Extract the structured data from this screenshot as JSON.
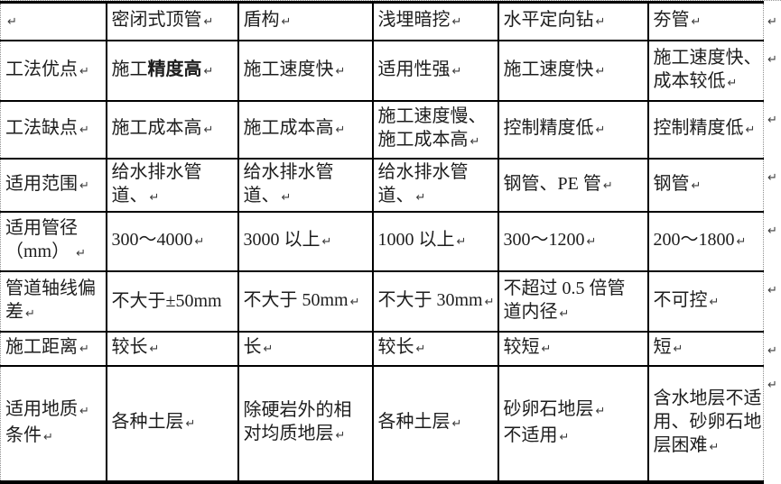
{
  "colors": {
    "border_solid": "#000000",
    "border_dotted": "#8f8f8f",
    "text": "#1d1d1d",
    "mark": "#3c3c3c",
    "background": "#ffffff"
  },
  "mark_glyph": "↵",
  "table": {
    "description_header_row_and_rows": "comparison table of trenchless construction methods",
    "columns": [
      "",
      "密闭式顶管",
      "盾构",
      "浅埋暗挖",
      "水平定向钻",
      "夯管"
    ],
    "rows": [
      {
        "name": "header",
        "end_mark": true,
        "cells": [
          {
            "lines": [
              {
                "parts": [
                  {
                    "text": "",
                    "bold": false
                  }
                ],
                "mark": true
              }
            ]
          },
          {
            "lines": [
              {
                "parts": [
                  {
                    "text": "密闭式顶管",
                    "bold": false
                  }
                ],
                "mark": true
              }
            ]
          },
          {
            "lines": [
              {
                "parts": [
                  {
                    "text": "盾构",
                    "bold": false
                  }
                ],
                "mark": true
              }
            ]
          },
          {
            "lines": [
              {
                "parts": [
                  {
                    "text": "浅埋暗挖",
                    "bold": false
                  }
                ],
                "mark": true
              }
            ]
          },
          {
            "lines": [
              {
                "parts": [
                  {
                    "text": "水平定向钻",
                    "bold": false
                  }
                ],
                "mark": true
              }
            ]
          },
          {
            "lines": [
              {
                "parts": [
                  {
                    "text": "夯管",
                    "bold": false
                  }
                ],
                "mark": true
              }
            ]
          }
        ]
      },
      {
        "name": "advantages",
        "end_mark": true,
        "cells": [
          {
            "lines": [
              {
                "parts": [
                  {
                    "text": "工法优点",
                    "bold": false
                  }
                ],
                "mark": true
              }
            ]
          },
          {
            "lines": [
              {
                "parts": [
                  {
                    "text": "施工",
                    "bold": false
                  },
                  {
                    "text": "精度高",
                    "bold": true
                  }
                ],
                "mark": true
              }
            ]
          },
          {
            "lines": [
              {
                "parts": [
                  {
                    "text": "施工速度快",
                    "bold": false
                  }
                ],
                "mark": true
              }
            ]
          },
          {
            "lines": [
              {
                "parts": [
                  {
                    "text": "适用性强",
                    "bold": false
                  }
                ],
                "mark": true
              }
            ]
          },
          {
            "lines": [
              {
                "parts": [
                  {
                    "text": "施工速度快",
                    "bold": false
                  }
                ],
                "mark": true
              }
            ]
          },
          {
            "lines": [
              {
                "parts": [
                  {
                    "text": "施工速度快、",
                    "bold": false
                  }
                ],
                "mark": false
              },
              {
                "parts": [
                  {
                    "text": "成本较低",
                    "bold": false
                  }
                ],
                "mark": true
              }
            ]
          }
        ]
      },
      {
        "name": "disadvantages",
        "end_mark": true,
        "cells": [
          {
            "lines": [
              {
                "parts": [
                  {
                    "text": "工法缺点",
                    "bold": false
                  }
                ],
                "mark": true
              }
            ]
          },
          {
            "lines": [
              {
                "parts": [
                  {
                    "text": "施工成本高",
                    "bold": false
                  }
                ],
                "mark": true
              }
            ]
          },
          {
            "lines": [
              {
                "parts": [
                  {
                    "text": "施工成本高",
                    "bold": false
                  }
                ],
                "mark": true
              }
            ]
          },
          {
            "lines": [
              {
                "parts": [
                  {
                    "text": "施工速度慢、",
                    "bold": false
                  }
                ],
                "mark": false
              },
              {
                "parts": [
                  {
                    "text": "施工成本高",
                    "bold": false
                  }
                ],
                "mark": true
              }
            ]
          },
          {
            "lines": [
              {
                "parts": [
                  {
                    "text": "控制精度低",
                    "bold": false
                  }
                ],
                "mark": true
              }
            ]
          },
          {
            "lines": [
              {
                "parts": [
                  {
                    "text": "控制精度低",
                    "bold": false
                  }
                ],
                "mark": true
              }
            ]
          }
        ]
      },
      {
        "name": "applicable-scope",
        "end_mark": true,
        "cells": [
          {
            "lines": [
              {
                "parts": [
                  {
                    "text": "适用范围",
                    "bold": false
                  }
                ],
                "mark": true
              }
            ]
          },
          {
            "lines": [
              {
                "parts": [
                  {
                    "text": "给水排水管",
                    "bold": false
                  }
                ],
                "mark": false
              },
              {
                "parts": [
                  {
                    "text": "道、",
                    "bold": false
                  }
                ],
                "mark": true
              }
            ]
          },
          {
            "lines": [
              {
                "parts": [
                  {
                    "text": "给水排水管",
                    "bold": false
                  }
                ],
                "mark": false
              },
              {
                "parts": [
                  {
                    "text": "道、",
                    "bold": false
                  }
                ],
                "mark": true
              }
            ]
          },
          {
            "lines": [
              {
                "parts": [
                  {
                    "text": "给水排水管",
                    "bold": false
                  }
                ],
                "mark": false
              },
              {
                "parts": [
                  {
                    "text": "道、",
                    "bold": false
                  }
                ],
                "mark": true
              }
            ]
          },
          {
            "lines": [
              {
                "parts": [
                  {
                    "text": "钢管、PE 管",
                    "bold": false
                  }
                ],
                "mark": true
              }
            ]
          },
          {
            "lines": [
              {
                "parts": [
                  {
                    "text": "钢管",
                    "bold": false
                  }
                ],
                "mark": true
              }
            ]
          }
        ]
      },
      {
        "name": "applicable-diameter-mm",
        "end_mark": true,
        "cells": [
          {
            "lines": [
              {
                "parts": [
                  {
                    "text": "适用管径",
                    "bold": false
                  }
                ],
                "mark": false
              },
              {
                "parts": [
                  {
                    "text": "（mm） ",
                    "bold": false
                  }
                ],
                "mark": true
              }
            ]
          },
          {
            "lines": [
              {
                "parts": [
                  {
                    "text": "300～4000",
                    "bold": false
                  }
                ],
                "mark": true
              }
            ]
          },
          {
            "lines": [
              {
                "parts": [
                  {
                    "text": "3000 以上",
                    "bold": false
                  }
                ],
                "mark": true
              }
            ]
          },
          {
            "lines": [
              {
                "parts": [
                  {
                    "text": "1000 以上",
                    "bold": false
                  }
                ],
                "mark": true
              }
            ]
          },
          {
            "lines": [
              {
                "parts": [
                  {
                    "text": "300～1200",
                    "bold": false
                  }
                ],
                "mark": true
              }
            ]
          },
          {
            "lines": [
              {
                "parts": [
                  {
                    "text": "200～1800",
                    "bold": false
                  }
                ],
                "mark": true
              }
            ]
          }
        ]
      },
      {
        "name": "axis-deviation",
        "end_mark": true,
        "cells": [
          {
            "lines": [
              {
                "parts": [
                  {
                    "text": "管道轴线偏",
                    "bold": false
                  }
                ],
                "mark": false
              },
              {
                "parts": [
                  {
                    "text": "差",
                    "bold": false
                  }
                ],
                "mark": true
              }
            ]
          },
          {
            "lines": [
              {
                "parts": [
                  {
                    "text": "不大于±50mm",
                    "bold": false
                  }
                ],
                "mark": false
              }
            ]
          },
          {
            "lines": [
              {
                "parts": [
                  {
                    "text": "不大于 50mm",
                    "bold": false
                  }
                ],
                "mark": true
              }
            ]
          },
          {
            "lines": [
              {
                "parts": [
                  {
                    "text": "不大于 30mm",
                    "bold": false
                  }
                ],
                "mark": true
              }
            ]
          },
          {
            "lines": [
              {
                "parts": [
                  {
                    "text": "不超过 0.5 倍管",
                    "bold": false
                  }
                ],
                "mark": false
              },
              {
                "parts": [
                  {
                    "text": "道内径",
                    "bold": false
                  }
                ],
                "mark": true
              }
            ]
          },
          {
            "lines": [
              {
                "parts": [
                  {
                    "text": "不可控",
                    "bold": false
                  }
                ],
                "mark": true
              }
            ]
          }
        ]
      },
      {
        "name": "construction-distance",
        "end_mark": true,
        "cells": [
          {
            "lines": [
              {
                "parts": [
                  {
                    "text": "施工距离",
                    "bold": false
                  }
                ],
                "mark": true
              }
            ]
          },
          {
            "lines": [
              {
                "parts": [
                  {
                    "text": "较长",
                    "bold": false
                  }
                ],
                "mark": true
              }
            ]
          },
          {
            "lines": [
              {
                "parts": [
                  {
                    "text": "长",
                    "bold": false
                  }
                ],
                "mark": true
              }
            ]
          },
          {
            "lines": [
              {
                "parts": [
                  {
                    "text": "较长",
                    "bold": false
                  }
                ],
                "mark": true
              }
            ]
          },
          {
            "lines": [
              {
                "parts": [
                  {
                    "text": "较短",
                    "bold": false
                  }
                ],
                "mark": true
              }
            ]
          },
          {
            "lines": [
              {
                "parts": [
                  {
                    "text": "短",
                    "bold": false
                  }
                ],
                "mark": true
              }
            ]
          }
        ]
      },
      {
        "name": "geological-conditions",
        "end_mark": true,
        "cells": [
          {
            "lines": [
              {
                "parts": [
                  {
                    "text": "适用地质",
                    "bold": false
                  }
                ],
                "mark": true
              },
              {
                "parts": [
                  {
                    "text": "条件",
                    "bold": false
                  }
                ],
                "mark": true
              }
            ]
          },
          {
            "lines": [
              {
                "parts": [
                  {
                    "text": "各种土层",
                    "bold": false
                  }
                ],
                "mark": true
              }
            ]
          },
          {
            "lines": [
              {
                "parts": [
                  {
                    "text": "除硬岩外的相",
                    "bold": false
                  }
                ],
                "mark": false
              },
              {
                "parts": [
                  {
                    "text": "对均质地层",
                    "bold": false
                  }
                ],
                "mark": true
              }
            ]
          },
          {
            "lines": [
              {
                "parts": [
                  {
                    "text": "各种土层",
                    "bold": false
                  }
                ],
                "mark": true
              }
            ]
          },
          {
            "lines": [
              {
                "parts": [
                  {
                    "text": "砂卵石地层",
                    "bold": false
                  }
                ],
                "mark": true
              },
              {
                "parts": [
                  {
                    "text": "不适用",
                    "bold": false
                  }
                ],
                "mark": true
              }
            ]
          },
          {
            "lines": [
              {
                "parts": [
                  {
                    "text": "含水地层不适",
                    "bold": false
                  }
                ],
                "mark": false
              },
              {
                "parts": [
                  {
                    "text": "用、砂卵石地",
                    "bold": false
                  }
                ],
                "mark": false
              },
              {
                "parts": [
                  {
                    "text": "层困难",
                    "bold": false
                  }
                ],
                "mark": true
              }
            ]
          }
        ]
      }
    ]
  }
}
